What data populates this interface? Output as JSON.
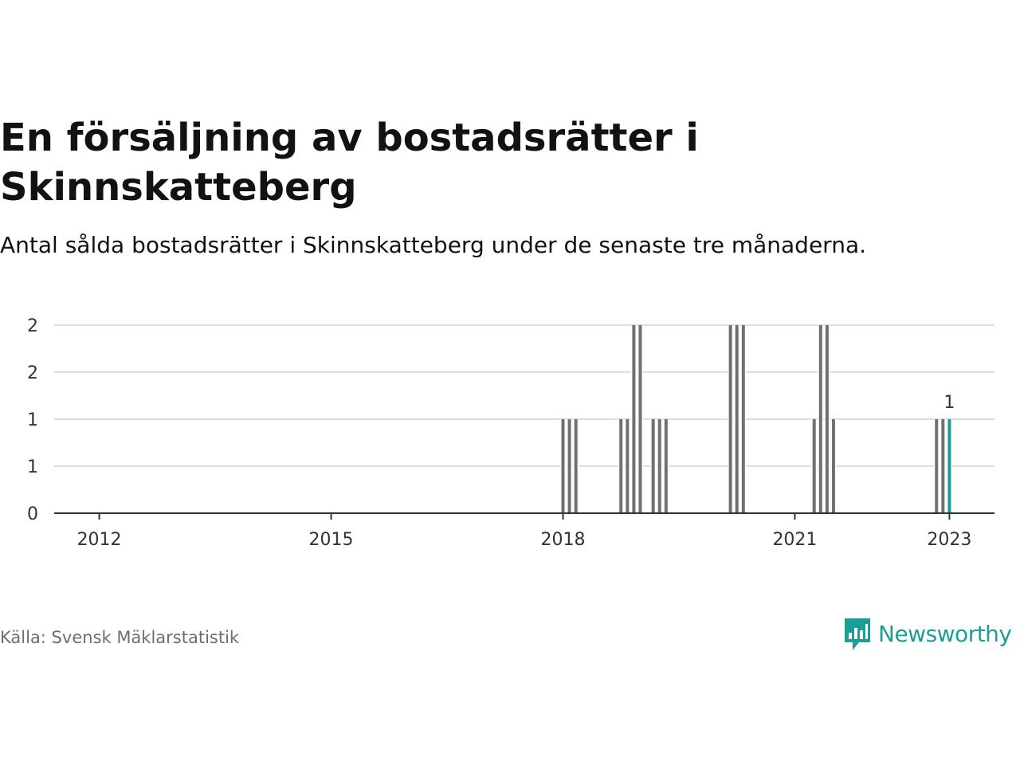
{
  "header": {
    "title": "En försäljning av bostadsrätter i Skinnskatteberg",
    "subtitle": "Antal sålda bostadsrätter i Skinnskatteberg under de senaste tre månaderna."
  },
  "footer": {
    "source": "Källa: Svensk Mäklarstatistik",
    "brand": "Newsworthy"
  },
  "colors": {
    "bar": "#707070",
    "highlight": "#1a9e96",
    "grid": "#dddddd",
    "axis": "#333333",
    "brand": "#1a9e96"
  },
  "icons": {
    "brand_logo": "newsworthy-chart-bubble-icon"
  },
  "chart_data": {
    "type": "bar",
    "title": "",
    "xlabel": "",
    "ylabel": "",
    "grid": true,
    "x_start": "2011-06",
    "x_end": "2023-08",
    "ylim": [
      0,
      2
    ],
    "yticks": [
      {
        "value": 0,
        "label": "0"
      },
      {
        "value": 0.5,
        "label": "1"
      },
      {
        "value": 1,
        "label": "1"
      },
      {
        "value": 1.5,
        "label": "2"
      },
      {
        "value": 2,
        "label": "2"
      }
    ],
    "xticks": [
      {
        "date": "2012-01",
        "label": "2012"
      },
      {
        "date": "2015-01",
        "label": "2015"
      },
      {
        "date": "2018-01",
        "label": "2018"
      },
      {
        "date": "2021-01",
        "label": "2021"
      },
      {
        "date": "2023-01",
        "label": "2023"
      }
    ],
    "series": [
      {
        "points": [
          {
            "x": "2018-01",
            "y": 1
          },
          {
            "x": "2018-02",
            "y": 1
          },
          {
            "x": "2018-03",
            "y": 1
          },
          {
            "x": "2018-10",
            "y": 1
          },
          {
            "x": "2018-11",
            "y": 1
          },
          {
            "x": "2018-12",
            "y": 2
          },
          {
            "x": "2019-01",
            "y": 2
          },
          {
            "x": "2019-03",
            "y": 1
          },
          {
            "x": "2019-04",
            "y": 1
          },
          {
            "x": "2019-05",
            "y": 1
          },
          {
            "x": "2020-03",
            "y": 2
          },
          {
            "x": "2020-04",
            "y": 2
          },
          {
            "x": "2020-05",
            "y": 2
          },
          {
            "x": "2021-04",
            "y": 1
          },
          {
            "x": "2021-05",
            "y": 2
          },
          {
            "x": "2021-06",
            "y": 2
          },
          {
            "x": "2021-07",
            "y": 1
          },
          {
            "x": "2022-11",
            "y": 1
          },
          {
            "x": "2022-12",
            "y": 1
          },
          {
            "x": "2023-01",
            "y": 1
          }
        ]
      }
    ],
    "highlight": {
      "x": "2023-01",
      "y": 1,
      "label": "1"
    }
  }
}
